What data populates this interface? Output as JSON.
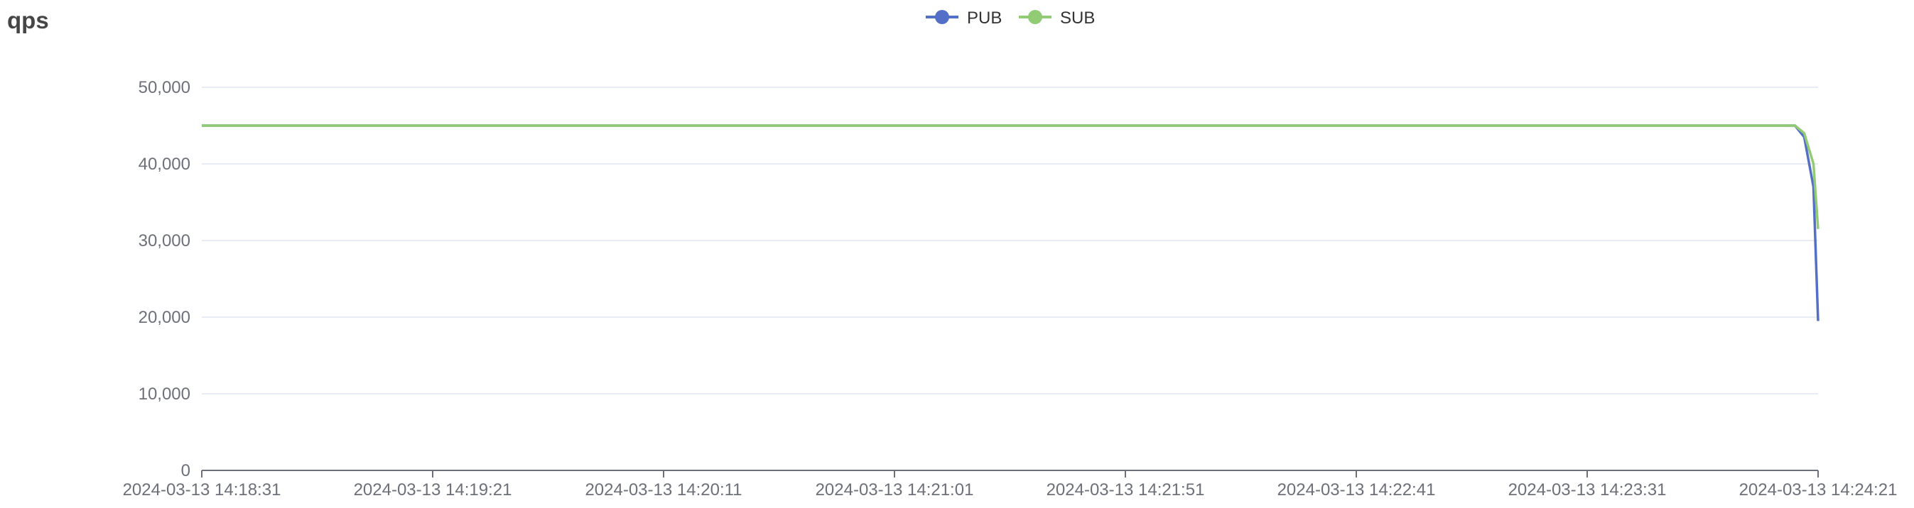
{
  "chart_data": {
    "type": "line",
    "title": "qps",
    "xlabel": "",
    "ylabel": "",
    "ylim": [
      0,
      50000
    ],
    "yticks": [
      0,
      10000,
      20000,
      30000,
      40000,
      50000
    ],
    "ytick_labels": [
      "0",
      "10,000",
      "20,000",
      "30,000",
      "40,000",
      "50,000"
    ],
    "xtick_labels": [
      "2024-03-13 14:18:31",
      "2024-03-13 14:19:21",
      "2024-03-13 14:20:11",
      "2024-03-13 14:21:01",
      "2024-03-13 14:21:51",
      "2024-03-13 14:22:41",
      "2024-03-13 14:23:31",
      "2024-03-13 14:24:21"
    ],
    "x_seconds_range": [
      0,
      350
    ],
    "x_start_label": "2024-03-13 14:18:31",
    "x_end_label": "2024-03-13 14:24:21",
    "grid": true,
    "legend_position": "top-center",
    "series": [
      {
        "name": "PUB",
        "color": "#5470c6",
        "points": [
          [
            "2024-03-13 14:18:31",
            45000
          ],
          [
            "2024-03-13 14:19:21",
            45000
          ],
          [
            "2024-03-13 14:20:11",
            45000
          ],
          [
            "2024-03-13 14:21:01",
            45000
          ],
          [
            "2024-03-13 14:21:51",
            45000
          ],
          [
            "2024-03-13 14:22:41",
            45000
          ],
          [
            "2024-03-13 14:23:31",
            45000
          ],
          [
            "2024-03-13 14:24:16",
            45000
          ],
          [
            "2024-03-13 14:24:18",
            43500
          ],
          [
            "2024-03-13 14:24:20",
            37000
          ],
          [
            "2024-03-13 14:24:21",
            19500
          ]
        ]
      },
      {
        "name": "SUB",
        "color": "#91cc75",
        "points": [
          [
            "2024-03-13 14:18:31",
            45000
          ],
          [
            "2024-03-13 14:19:21",
            45000
          ],
          [
            "2024-03-13 14:20:11",
            45000
          ],
          [
            "2024-03-13 14:21:01",
            45000
          ],
          [
            "2024-03-13 14:21:51",
            45000
          ],
          [
            "2024-03-13 14:22:41",
            45000
          ],
          [
            "2024-03-13 14:23:31",
            45000
          ],
          [
            "2024-03-13 14:24:16",
            45000
          ],
          [
            "2024-03-13 14:24:18",
            44000
          ],
          [
            "2024-03-13 14:24:20",
            40000
          ],
          [
            "2024-03-13 14:24:21",
            31500
          ]
        ]
      }
    ]
  }
}
